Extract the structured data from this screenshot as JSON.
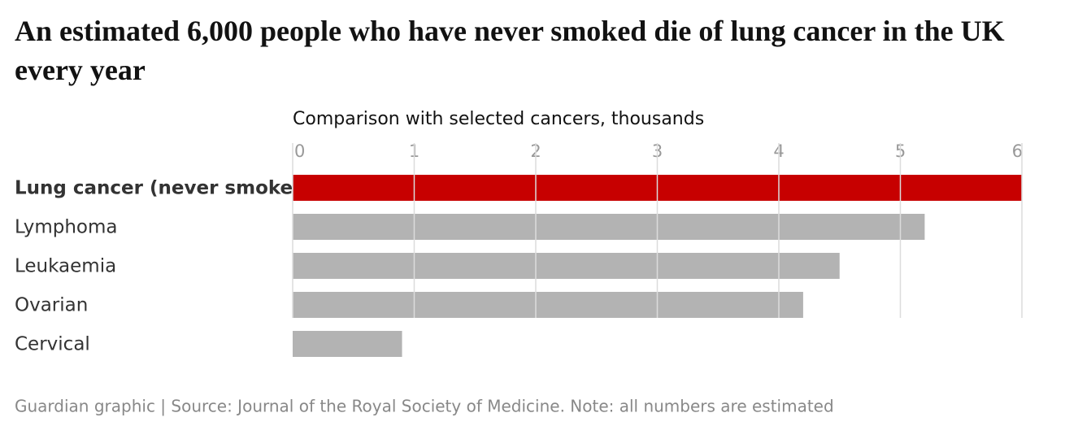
{
  "chart_data": {
    "type": "bar",
    "orientation": "horizontal",
    "title": "An estimated 6,000 people who have never smoked die of lung cancer in the UK every year",
    "subtitle": "Comparison with selected cancers, thousands",
    "categories": [
      "Lung cancer (never smoked)",
      "Lymphoma",
      "Leukaemia",
      "Ovarian",
      "Cervical"
    ],
    "values": [
      6,
      5.2,
      4.5,
      4.2,
      0.9
    ],
    "colors": [
      "#c70000",
      "#b3b3b3",
      "#b3b3b3",
      "#b3b3b3",
      "#b3b3b3"
    ],
    "xlim": [
      0,
      6
    ],
    "xticks": [
      0,
      1,
      2,
      3,
      4,
      5,
      6
    ],
    "grid": true,
    "footer": "Guardian graphic | Source: Journal of the Royal Society of Medicine. Note: all numbers are estimated"
  }
}
